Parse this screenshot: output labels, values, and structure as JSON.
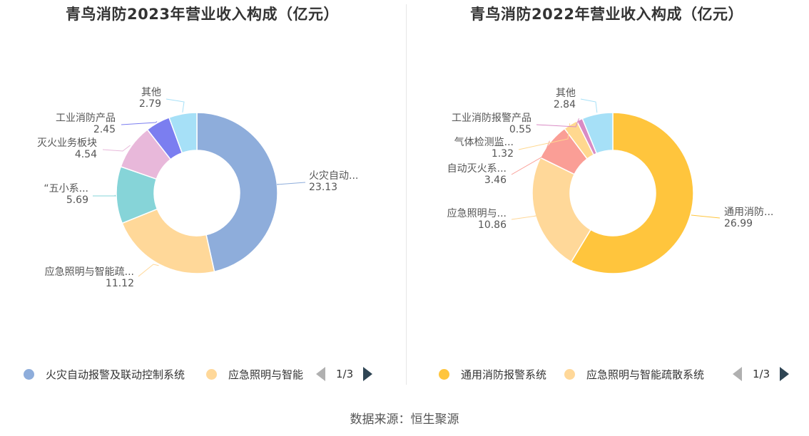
{
  "chart_data": [
    {
      "type": "pie",
      "title": "青鸟消防2023年营业收入构成（亿元）",
      "slices": [
        {
          "name": "火灾自动报警及联动控制系统",
          "label": "火灾自动...",
          "value": 23.13,
          "value_text": "23.13",
          "color": "#8eaddb"
        },
        {
          "name": "应急照明与智能疏散系统",
          "label": "应急照明与智能疏...",
          "value": 11.12,
          "value_text": "11.12",
          "color": "#ffd899"
        },
        {
          "name": "“五小系统”",
          "label": "“五小系...",
          "value": 5.69,
          "value_text": "5.69",
          "color": "#86d4d8"
        },
        {
          "name": "灭火业务板块",
          "label": "灭火业务板块",
          "value": 4.54,
          "value_text": "4.54",
          "color": "#e8b8da"
        },
        {
          "name": "工业消防产品",
          "label": "工业消防产品",
          "value": 2.45,
          "value_text": "2.45",
          "color": "#7b7ef0"
        },
        {
          "name": "其他",
          "label": "其他",
          "value": 2.79,
          "value_text": "2.79",
          "color": "#a6e0f7"
        }
      ],
      "legend": {
        "items": [
          "火灾自动报警及联动控制系统",
          "应急照明与智能"
        ],
        "page": "1/3",
        "placement": "bottom"
      }
    },
    {
      "type": "pie",
      "title": "青鸟消防2022年营业收入构成（亿元）",
      "slices": [
        {
          "name": "通用消防报警系统",
          "label": "通用消防...",
          "value": 26.99,
          "value_text": "26.99",
          "color": "#ffc53d"
        },
        {
          "name": "应急照明与智能疏散系统",
          "label": "应急照明与...",
          "value": 10.86,
          "value_text": "10.86",
          "color": "#ffd899"
        },
        {
          "name": "自动灭火系统",
          "label": "自动灭火系...",
          "value": 3.46,
          "value_text": "3.46",
          "color": "#fa9e96"
        },
        {
          "name": "气体检测监控系统",
          "label": "气体检测监...",
          "value": 1.32,
          "value_text": "1.32",
          "color": "#ffd88f"
        },
        {
          "name": "工业消防报警产品",
          "label": "工业消防报警产品",
          "value": 0.55,
          "value_text": "0.55",
          "color": "#d98bc4"
        },
        {
          "name": "其他",
          "label": "其他",
          "value": 2.84,
          "value_text": "2.84",
          "color": "#a6e0f7"
        }
      ],
      "legend": {
        "items": [
          "通用消防报警系统",
          "应急照明与智能疏散系统"
        ],
        "page": "1/3",
        "placement": "bottom"
      }
    }
  ],
  "source": "数据来源：恒生聚源"
}
